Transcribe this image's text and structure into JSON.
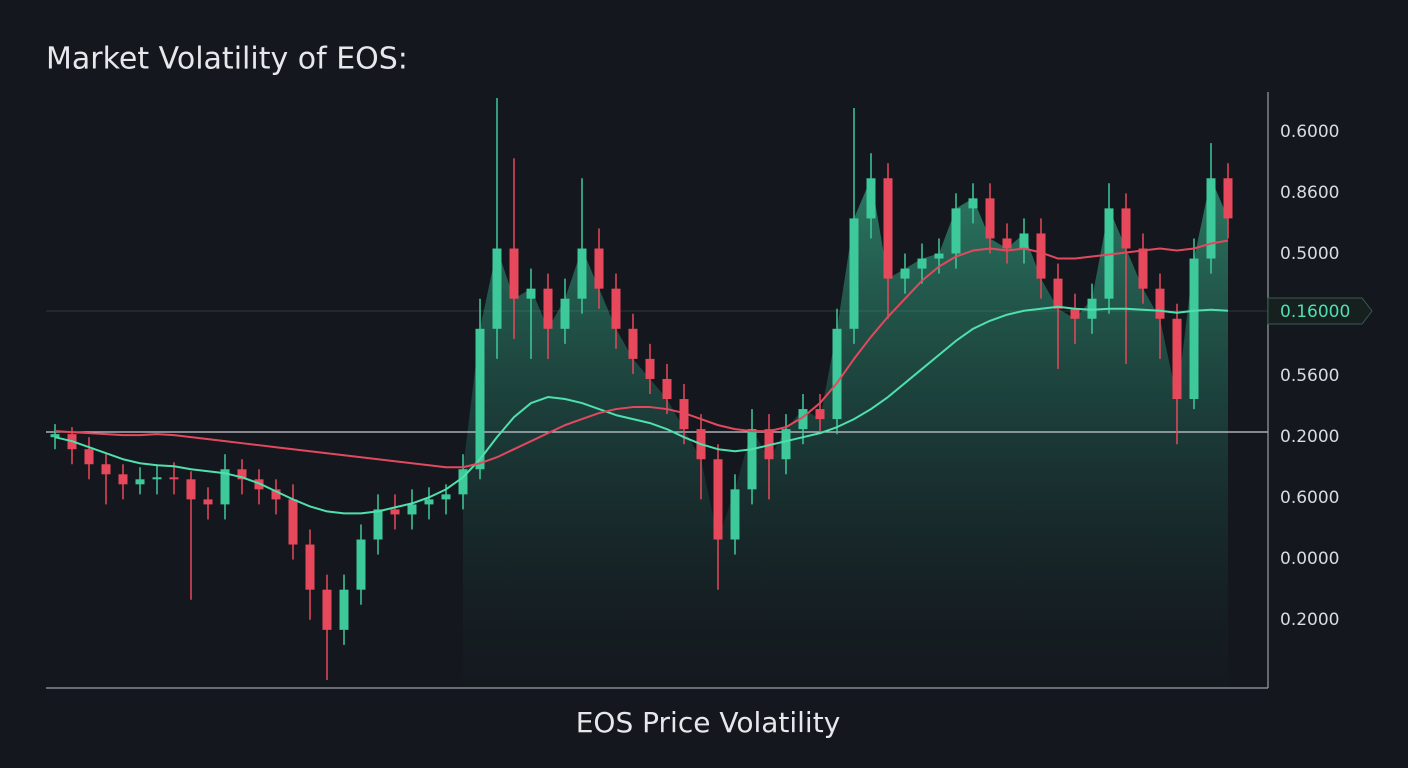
{
  "chart_data": {
    "type": "candlestick",
    "title": "Market Volatility of EOS:",
    "x_label": "EOS Price Volatility",
    "y_axis_labels": [
      "0.6000",
      "0.8600",
      "0.5000",
      "0.5600",
      "0.2000",
      "0.6000",
      "0.0000",
      "0.2000"
    ],
    "price_tag": "0.16000",
    "up_color": "#3ec99b",
    "down_color": "#e8485b",
    "open": [
      0.262,
      0.265,
      0.25,
      0.235,
      0.225,
      0.215,
      0.22,
      0.222,
      0.22,
      0.2,
      0.195,
      0.23,
      0.22,
      0.21,
      0.2,
      0.155,
      0.11,
      0.07,
      0.11,
      0.16,
      0.19,
      0.185,
      0.195,
      0.2,
      0.205,
      0.23,
      0.37,
      0.45,
      0.4,
      0.41,
      0.37,
      0.4,
      0.45,
      0.41,
      0.37,
      0.34,
      0.32,
      0.3,
      0.27,
      0.24,
      0.16,
      0.21,
      0.27,
      0.24,
      0.27,
      0.29,
      0.28,
      0.37,
      0.48,
      0.52,
      0.42,
      0.43,
      0.44,
      0.445,
      0.49,
      0.5,
      0.46,
      0.45,
      0.465,
      0.42,
      0.39,
      0.38,
      0.4,
      0.49,
      0.45,
      0.41,
      0.38,
      0.3,
      0.44,
      0.52
    ],
    "high": [
      0.275,
      0.272,
      0.262,
      0.245,
      0.235,
      0.232,
      0.235,
      0.237,
      0.228,
      0.212,
      0.245,
      0.24,
      0.23,
      0.22,
      0.215,
      0.17,
      0.125,
      0.125,
      0.175,
      0.205,
      0.205,
      0.21,
      0.212,
      0.215,
      0.245,
      0.4,
      0.6,
      0.54,
      0.43,
      0.425,
      0.42,
      0.52,
      0.47,
      0.425,
      0.385,
      0.355,
      0.335,
      0.315,
      0.285,
      0.255,
      0.225,
      0.29,
      0.285,
      0.285,
      0.305,
      0.305,
      0.39,
      0.59,
      0.545,
      0.535,
      0.445,
      0.455,
      0.46,
      0.505,
      0.515,
      0.515,
      0.475,
      0.48,
      0.48,
      0.435,
      0.405,
      0.415,
      0.515,
      0.505,
      0.465,
      0.425,
      0.395,
      0.46,
      0.555,
      0.535
    ],
    "low": [
      0.25,
      0.235,
      0.22,
      0.195,
      0.2,
      0.205,
      0.205,
      0.205,
      0.1,
      0.18,
      0.18,
      0.205,
      0.195,
      0.185,
      0.14,
      0.08,
      0.02,
      0.055,
      0.095,
      0.145,
      0.17,
      0.17,
      0.18,
      0.185,
      0.19,
      0.22,
      0.34,
      0.36,
      0.34,
      0.34,
      0.355,
      0.385,
      0.39,
      0.35,
      0.325,
      0.305,
      0.285,
      0.255,
      0.2,
      0.11,
      0.145,
      0.195,
      0.2,
      0.225,
      0.255,
      0.265,
      0.265,
      0.355,
      0.46,
      0.38,
      0.405,
      0.415,
      0.425,
      0.43,
      0.475,
      0.445,
      0.435,
      0.435,
      0.4,
      0.33,
      0.355,
      0.365,
      0.385,
      0.335,
      0.395,
      0.34,
      0.255,
      0.29,
      0.425,
      0.46
    ],
    "close": [
      0.265,
      0.25,
      0.235,
      0.225,
      0.215,
      0.22,
      0.222,
      0.22,
      0.2,
      0.195,
      0.23,
      0.22,
      0.21,
      0.2,
      0.155,
      0.11,
      0.07,
      0.11,
      0.16,
      0.19,
      0.185,
      0.195,
      0.2,
      0.205,
      0.23,
      0.37,
      0.45,
      0.4,
      0.41,
      0.37,
      0.4,
      0.45,
      0.41,
      0.37,
      0.34,
      0.32,
      0.3,
      0.27,
      0.24,
      0.16,
      0.21,
      0.27,
      0.24,
      0.27,
      0.29,
      0.28,
      0.37,
      0.48,
      0.52,
      0.42,
      0.43,
      0.44,
      0.445,
      0.49,
      0.5,
      0.46,
      0.45,
      0.465,
      0.42,
      0.39,
      0.38,
      0.4,
      0.49,
      0.45,
      0.41,
      0.38,
      0.3,
      0.44,
      0.52,
      0.48
    ],
    "moving_averages": [
      {
        "color": "#4fe0ad",
        "values": [
          0.262,
          0.258,
          0.252,
          0.246,
          0.24,
          0.236,
          0.234,
          0.233,
          0.23,
          0.228,
          0.226,
          0.222,
          0.216,
          0.208,
          0.2,
          0.193,
          0.188,
          0.186,
          0.186,
          0.188,
          0.192,
          0.196,
          0.202,
          0.21,
          0.222,
          0.24,
          0.262,
          0.282,
          0.296,
          0.302,
          0.3,
          0.296,
          0.29,
          0.284,
          0.28,
          0.276,
          0.27,
          0.262,
          0.255,
          0.25,
          0.248,
          0.25,
          0.254,
          0.258,
          0.262,
          0.266,
          0.272,
          0.28,
          0.29,
          0.302,
          0.316,
          0.33,
          0.344,
          0.358,
          0.37,
          0.378,
          0.384,
          0.388,
          0.39,
          0.392,
          0.39,
          0.389,
          0.39,
          0.39,
          0.389,
          0.388,
          0.386,
          0.388,
          0.389,
          0.388
        ]
      },
      {
        "color": "#e2495e",
        "values": [
          0.268,
          0.267,
          0.266,
          0.265,
          0.264,
          0.264,
          0.265,
          0.264,
          0.262,
          0.26,
          0.258,
          0.256,
          0.254,
          0.252,
          0.25,
          0.248,
          0.246,
          0.244,
          0.242,
          0.24,
          0.238,
          0.236,
          0.234,
          0.232,
          0.232,
          0.236,
          0.242,
          0.25,
          0.258,
          0.266,
          0.274,
          0.28,
          0.286,
          0.29,
          0.292,
          0.292,
          0.29,
          0.286,
          0.28,
          0.274,
          0.27,
          0.268,
          0.268,
          0.272,
          0.282,
          0.296,
          0.316,
          0.34,
          0.362,
          0.382,
          0.4,
          0.418,
          0.432,
          0.442,
          0.448,
          0.45,
          0.448,
          0.45,
          0.446,
          0.44,
          0.44,
          0.442,
          0.444,
          0.446,
          0.448,
          0.45,
          0.448,
          0.45,
          0.455,
          0.458
        ]
      }
    ]
  }
}
